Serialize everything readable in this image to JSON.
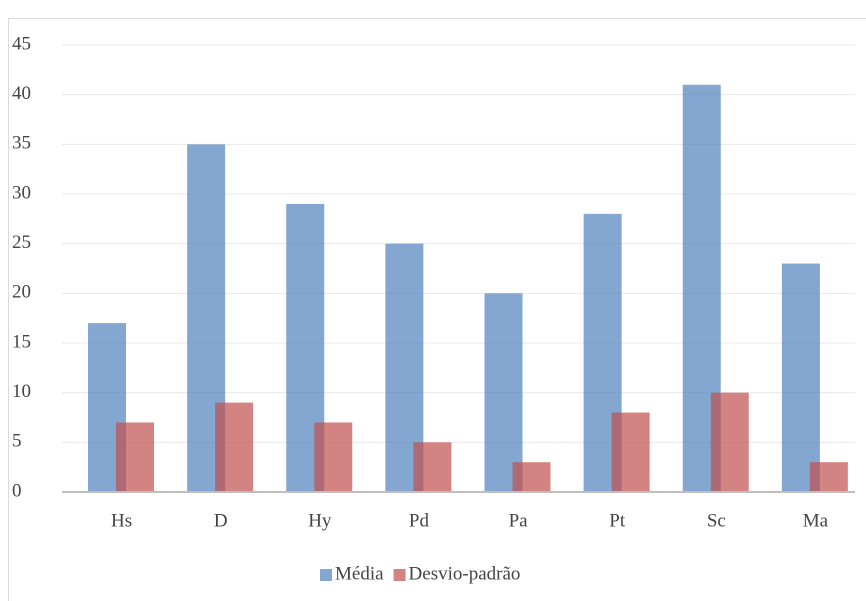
{
  "chart_data": {
    "type": "bar",
    "categories": [
      "Hs",
      "D",
      "Hy",
      "Pd",
      "Pa",
      "Pt",
      "Sc",
      "Ma"
    ],
    "series": [
      {
        "name": "Média",
        "color": "#4f81bd",
        "values": [
          17,
          35,
          29,
          25,
          20,
          28,
          41,
          23
        ]
      },
      {
        "name": "Desvio-padrão",
        "color": "#c0504d",
        "values": [
          7,
          9,
          7,
          5,
          3,
          8,
          10,
          3
        ]
      }
    ],
    "ylim": [
      0,
      45
    ],
    "yticks": [
      0,
      5,
      10,
      15,
      20,
      25,
      30,
      35,
      40,
      45
    ],
    "grid": true,
    "legend": "bottom"
  }
}
